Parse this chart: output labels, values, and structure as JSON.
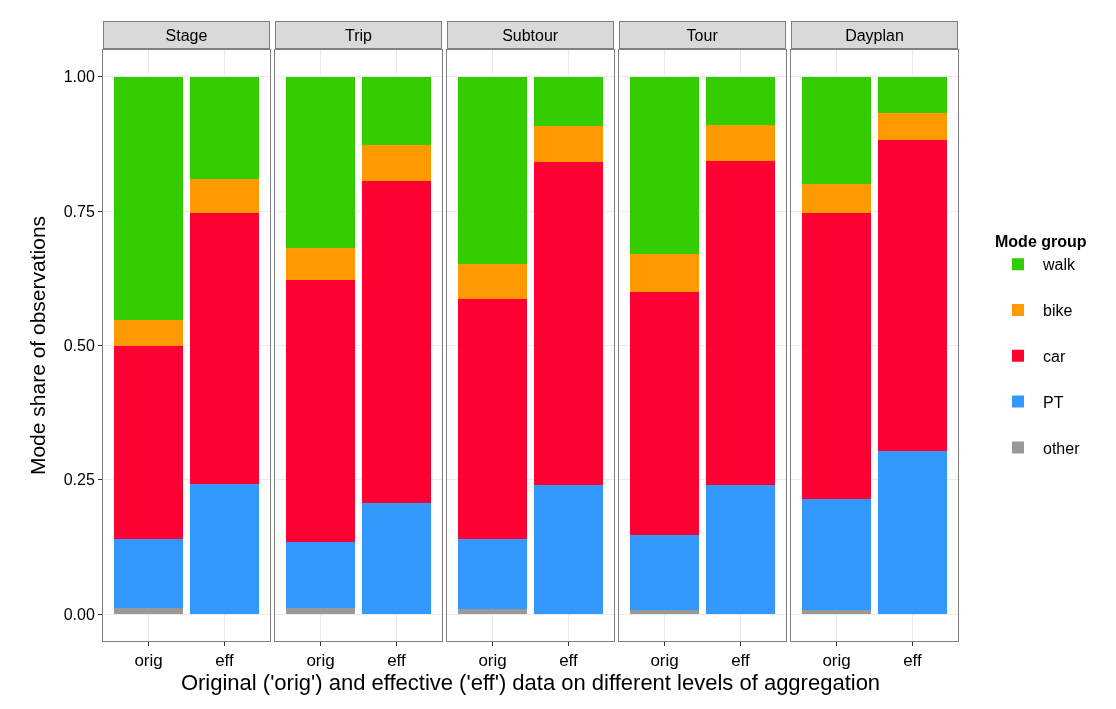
{
  "chart_data": [
    {
      "type": "bar",
      "title": "Stage",
      "categories": [
        "orig",
        "eff"
      ],
      "stacked": true,
      "series": [
        {
          "color": "#999999",
          "values": [
            0.012,
            null
          ]
        },
        {
          "color": "#3399ff",
          "values": [
            0.127,
            0.242
          ]
        },
        {
          "color": "#ff0033",
          "values": [
            0.36,
            0.505
          ]
        },
        {
          "color": "#ff9900",
          "values": [
            0.049,
            0.062
          ]
        },
        {
          "color": "#33cc00",
          "values": [
            0.452,
            0.191
          ]
        }
      ],
      "ylabel": "Mode share of observations",
      "ylim": [
        -0.05,
        1.05
      ],
      "yticks": [
        {
          "value": 0,
          "label": "0.00"
        },
        {
          "value": 0.25,
          "label": "0.25"
        },
        {
          "value": 0.5,
          "label": "0.50"
        },
        {
          "value": 0.75,
          "label": "0.75"
        },
        {
          "value": 1,
          "label": "1.00"
        }
      ],
      "grid": true
    },
    {
      "type": "bar",
      "title": "Trip",
      "categories": [
        "orig",
        "eff"
      ],
      "stacked": true,
      "series": [
        {
          "color": "#999999",
          "values": [
            0.012,
            null
          ]
        },
        {
          "color": "#3399ff",
          "values": [
            0.122,
            0.206
          ]
        },
        {
          "color": "#ff0033",
          "values": [
            0.487,
            0.601
          ]
        },
        {
          "color": "#ff9900",
          "values": [
            0.061,
            0.066
          ]
        },
        {
          "color": "#33cc00",
          "values": [
            0.318,
            0.127
          ]
        }
      ],
      "ylim": [
        -0.05,
        1.05
      ],
      "yticks": [
        0,
        0.25,
        0.5,
        0.75,
        1
      ],
      "grid": true,
      "tick_labels": "x"
    },
    {
      "type": "bar",
      "title": "Subtour",
      "categories": [
        "orig",
        "eff"
      ],
      "stacked": true,
      "series": [
        {
          "color": "#999999",
          "values": [
            0.01,
            null
          ]
        },
        {
          "color": "#3399ff",
          "values": [
            0.129,
            0.24
          ]
        },
        {
          "color": "#ff0033",
          "values": [
            0.447,
            0.602
          ]
        },
        {
          "color": "#ff9900",
          "values": [
            0.066,
            0.066
          ]
        },
        {
          "color": "#33cc00",
          "values": [
            0.348,
            0.092
          ]
        }
      ],
      "xlabel": "Original ('orig') and effective ('eff') data on different levels of aggregation",
      "ylim": [
        -0.05,
        1.05
      ],
      "yticks": [
        0,
        0.25,
        0.5,
        0.75,
        1
      ],
      "grid": true,
      "tick_labels": "x"
    },
    {
      "type": "bar",
      "title": "Tour",
      "categories": [
        "orig",
        "eff"
      ],
      "stacked": true,
      "series": [
        {
          "color": "#999999",
          "values": [
            0.008,
            null
          ]
        },
        {
          "color": "#3399ff",
          "values": [
            0.14,
            0.24
          ]
        },
        {
          "color": "#ff0033",
          "values": [
            0.452,
            0.604
          ]
        },
        {
          "color": "#ff9900",
          "values": [
            0.071,
            0.067
          ]
        },
        {
          "color": "#33cc00",
          "values": [
            0.329,
            0.089
          ]
        }
      ],
      "ylim": [
        -0.05,
        1.05
      ],
      "yticks": [
        0,
        0.25,
        0.5,
        0.75,
        1
      ],
      "grid": true,
      "tick_labels": "x"
    },
    {
      "type": "bar",
      "title": "Dayplan",
      "categories": [
        "orig",
        "eff"
      ],
      "stacked": true,
      "series": [
        {
          "name": "other",
          "color": "#999999",
          "values": [
            0.008,
            null
          ]
        },
        {
          "name": "PT",
          "color": "#3399ff",
          "values": [
            0.206,
            0.303
          ]
        },
        {
          "name": "car",
          "color": "#ff0033",
          "values": [
            0.532,
            0.58
          ]
        },
        {
          "name": "bike",
          "color": "#ff9900",
          "values": [
            0.055,
            0.049
          ]
        },
        {
          "name": "walk",
          "color": "#33cc00",
          "values": [
            0.199,
            0.068
          ]
        }
      ],
      "legend_title": "Mode group",
      "legend": "right",
      "ylim": [
        -0.05,
        1.05
      ],
      "yticks": [
        0,
        0.25,
        0.5,
        0.75,
        1
      ],
      "grid": true,
      "tick_labels": "x"
    }
  ]
}
